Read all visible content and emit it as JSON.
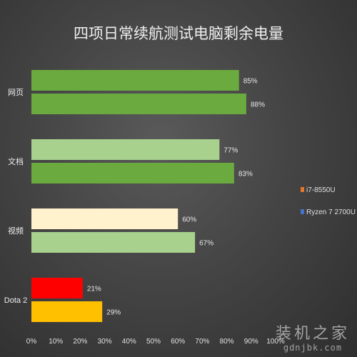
{
  "chart_data": {
    "type": "bar",
    "orientation": "horizontal",
    "title": "四项日常续航测试电脑剩余电量",
    "categories": [
      "网页",
      "文档",
      "视频",
      "Dota 2"
    ],
    "x_ticks": [
      "0%",
      "10%",
      "20%",
      "30%",
      "40%",
      "50%",
      "60%",
      "70%",
      "80%",
      "90%",
      "100%"
    ],
    "xlim": [
      0,
      100
    ],
    "legend": {
      "placement": "right",
      "entries": [
        {
          "name": "i7-8550U",
          "color": "#e9742b"
        },
        {
          "name": "Ryzen 7 2700U",
          "color": "#4472c4"
        }
      ]
    },
    "bars": [
      {
        "category": "网页",
        "value": 85,
        "label": "85%",
        "color": "#6aaa3f"
      },
      {
        "category": "网页",
        "value": 88,
        "label": "88%",
        "color": "#6aaa3f"
      },
      {
        "category": "文档",
        "value": 77,
        "label": "77%",
        "color": "#a9d18e"
      },
      {
        "category": "文档",
        "value": 83,
        "label": "83%",
        "color": "#6aaa3f"
      },
      {
        "category": "视频",
        "value": 60,
        "label": "60%",
        "color": "#fff2cc"
      },
      {
        "category": "视频",
        "value": 67,
        "label": "67%",
        "color": "#a9d18e"
      },
      {
        "category": "Dota 2",
        "value": 21,
        "label": "21%",
        "color": "#ff0000"
      },
      {
        "category": "Dota 2",
        "value": 29,
        "label": "29%",
        "color": "#ffc000"
      }
    ],
    "grid": false
  },
  "watermark": {
    "title": "装机之家",
    "url": "gdnjbk.com"
  }
}
